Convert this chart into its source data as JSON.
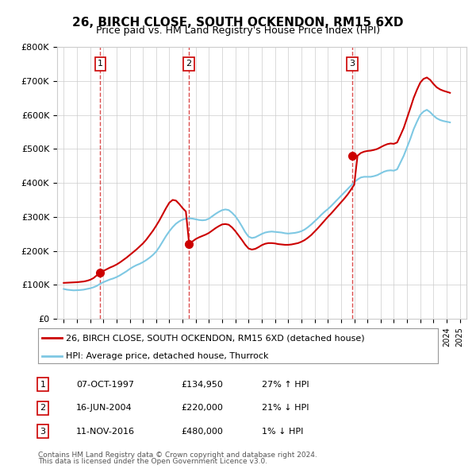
{
  "title": "26, BIRCH CLOSE, SOUTH OCKENDON, RM15 6XD",
  "subtitle": "Price paid vs. HM Land Registry's House Price Index (HPI)",
  "xlabel": "",
  "ylabel": "",
  "ylim": [
    0,
    800000
  ],
  "yticks": [
    0,
    100000,
    200000,
    300000,
    400000,
    500000,
    600000,
    700000,
    800000
  ],
  "ytick_labels": [
    "£0",
    "£100K",
    "£200K",
    "£300K",
    "£400K",
    "£500K",
    "£600K",
    "£700K",
    "£800K"
  ],
  "hpi_color": "#7ec8e3",
  "price_color": "#cc0000",
  "dot_color": "#cc0000",
  "dashed_color": "#cc0000",
  "background_color": "#ffffff",
  "grid_color": "#cccccc",
  "transactions": [
    {
      "num": 1,
      "date": "07-OCT-1997",
      "price": 134950,
      "hpi_note": "27% ↑ HPI",
      "x_year": 1997.77
    },
    {
      "num": 2,
      "date": "16-JUN-2004",
      "price": 220000,
      "hpi_note": "21% ↓ HPI",
      "x_year": 2004.46
    },
    {
      "num": 3,
      "date": "11-NOV-2016",
      "price": 480000,
      "hpi_note": "1% ↓ HPI",
      "x_year": 2016.86
    }
  ],
  "legend_label_price": "26, BIRCH CLOSE, SOUTH OCKENDON, RM15 6XD (detached house)",
  "legend_label_hpi": "HPI: Average price, detached house, Thurrock",
  "footer1": "Contains HM Land Registry data © Crown copyright and database right 2024.",
  "footer2": "This data is licensed under the Open Government Licence v3.0.",
  "hpi_data_x": [
    1995.0,
    1995.25,
    1995.5,
    1995.75,
    1996.0,
    1996.25,
    1996.5,
    1996.75,
    1997.0,
    1997.25,
    1997.5,
    1997.75,
    1998.0,
    1998.25,
    1998.5,
    1998.75,
    1999.0,
    1999.25,
    1999.5,
    1999.75,
    2000.0,
    2000.25,
    2000.5,
    2000.75,
    2001.0,
    2001.25,
    2001.5,
    2001.75,
    2002.0,
    2002.25,
    2002.5,
    2002.75,
    2003.0,
    2003.25,
    2003.5,
    2003.75,
    2004.0,
    2004.25,
    2004.5,
    2004.75,
    2005.0,
    2005.25,
    2005.5,
    2005.75,
    2006.0,
    2006.25,
    2006.5,
    2006.75,
    2007.0,
    2007.25,
    2007.5,
    2007.75,
    2008.0,
    2008.25,
    2008.5,
    2008.75,
    2009.0,
    2009.25,
    2009.5,
    2009.75,
    2010.0,
    2010.25,
    2010.5,
    2010.75,
    2011.0,
    2011.25,
    2011.5,
    2011.75,
    2012.0,
    2012.25,
    2012.5,
    2012.75,
    2013.0,
    2013.25,
    2013.5,
    2013.75,
    2014.0,
    2014.25,
    2014.5,
    2014.75,
    2015.0,
    2015.25,
    2015.5,
    2015.75,
    2016.0,
    2016.25,
    2016.5,
    2016.75,
    2017.0,
    2017.25,
    2017.5,
    2017.75,
    2018.0,
    2018.25,
    2018.5,
    2018.75,
    2019.0,
    2019.25,
    2019.5,
    2019.75,
    2020.0,
    2020.25,
    2020.5,
    2020.75,
    2021.0,
    2021.25,
    2021.5,
    2021.75,
    2022.0,
    2022.25,
    2022.5,
    2022.75,
    2023.0,
    2023.25,
    2023.5,
    2023.75,
    2024.0,
    2024.25
  ],
  "hpi_data_y": [
    88000,
    86000,
    85000,
    84000,
    84500,
    85000,
    86000,
    88000,
    90000,
    93000,
    97000,
    103000,
    108000,
    112000,
    116000,
    119000,
    123000,
    128000,
    134000,
    140000,
    147000,
    153000,
    158000,
    162000,
    167000,
    173000,
    180000,
    188000,
    198000,
    212000,
    228000,
    244000,
    258000,
    270000,
    280000,
    287000,
    292000,
    295000,
    296000,
    295000,
    293000,
    291000,
    290000,
    291000,
    295000,
    302000,
    309000,
    315000,
    320000,
    322000,
    320000,
    312000,
    302000,
    288000,
    272000,
    255000,
    242000,
    238000,
    240000,
    245000,
    250000,
    254000,
    256000,
    257000,
    256000,
    255000,
    254000,
    252000,
    251000,
    252000,
    253000,
    255000,
    258000,
    263000,
    270000,
    278000,
    287000,
    296000,
    306000,
    315000,
    323000,
    332000,
    342000,
    352000,
    362000,
    372000,
    382000,
    392000,
    402000,
    410000,
    416000,
    418000,
    418000,
    418000,
    420000,
    423000,
    428000,
    433000,
    436000,
    437000,
    436000,
    440000,
    460000,
    480000,
    505000,
    530000,
    558000,
    580000,
    600000,
    610000,
    615000,
    608000,
    598000,
    590000,
    585000,
    582000,
    580000,
    578000
  ],
  "price_line_x": [
    1995.0,
    1995.25,
    1995.5,
    1995.75,
    1996.0,
    1996.25,
    1996.5,
    1996.75,
    1997.0,
    1997.25,
    1997.5,
    1997.75,
    1998.0,
    1998.25,
    1998.5,
    1998.75,
    1999.0,
    1999.25,
    1999.5,
    1999.75,
    2000.0,
    2000.25,
    2000.5,
    2000.75,
    2001.0,
    2001.25,
    2001.5,
    2001.75,
    2002.0,
    2002.25,
    2002.5,
    2002.75,
    2003.0,
    2003.25,
    2003.5,
    2003.75,
    2004.0,
    2004.25,
    2004.5,
    2004.75,
    2005.0,
    2005.25,
    2005.5,
    2005.75,
    2006.0,
    2006.25,
    2006.5,
    2006.75,
    2007.0,
    2007.25,
    2007.5,
    2007.75,
    2008.0,
    2008.25,
    2008.5,
    2008.75,
    2009.0,
    2009.25,
    2009.5,
    2009.75,
    2010.0,
    2010.25,
    2010.5,
    2010.75,
    2011.0,
    2011.25,
    2011.5,
    2011.75,
    2012.0,
    2012.25,
    2012.5,
    2012.75,
    2013.0,
    2013.25,
    2013.5,
    2013.75,
    2014.0,
    2014.25,
    2014.5,
    2014.75,
    2015.0,
    2015.25,
    2015.5,
    2015.75,
    2016.0,
    2016.25,
    2016.5,
    2016.75,
    2017.0,
    2017.25,
    2017.5,
    2017.75,
    2018.0,
    2018.25,
    2018.5,
    2018.75,
    2019.0,
    2019.25,
    2019.5,
    2019.75,
    2020.0,
    2020.25,
    2020.5,
    2020.75,
    2021.0,
    2021.25,
    2021.5,
    2021.75,
    2022.0,
    2022.25,
    2022.5,
    2022.75,
    2023.0,
    2023.25,
    2023.5,
    2023.75,
    2024.0,
    2024.25
  ],
  "price_line_y": [
    106000,
    106500,
    107000,
    107500,
    108000,
    109000,
    110000,
    112000,
    115000,
    120000,
    128000,
    134950,
    141000,
    146000,
    151000,
    155000,
    160000,
    166000,
    173000,
    180000,
    188000,
    196000,
    204000,
    213000,
    222000,
    233000,
    246000,
    259000,
    274000,
    290000,
    308000,
    326000,
    342000,
    350000,
    348000,
    338000,
    326000,
    316000,
    220000,
    228000,
    235000,
    240000,
    244000,
    248000,
    253000,
    260000,
    267000,
    273000,
    278000,
    279000,
    277000,
    269000,
    258000,
    245000,
    232000,
    218000,
    207000,
    204000,
    206000,
    211000,
    217000,
    221000,
    223000,
    223000,
    222000,
    220000,
    219000,
    218000,
    218000,
    219000,
    221000,
    223000,
    227000,
    232000,
    239000,
    247000,
    257000,
    267000,
    278000,
    289000,
    300000,
    310000,
    321000,
    332000,
    343000,
    354000,
    366000,
    380000,
    395000,
    480000,
    488000,
    492000,
    494000,
    495000,
    497000,
    500000,
    505000,
    510000,
    514000,
    516000,
    515000,
    519000,
    540000,
    562000,
    591000,
    620000,
    650000,
    674000,
    695000,
    706000,
    710000,
    703000,
    691000,
    681000,
    675000,
    671000,
    668000,
    665000
  ],
  "xlim": [
    1994.5,
    2025.5
  ],
  "xticks": [
    1995,
    1996,
    1997,
    1998,
    1999,
    2000,
    2001,
    2002,
    2003,
    2004,
    2005,
    2006,
    2007,
    2008,
    2009,
    2010,
    2011,
    2012,
    2013,
    2014,
    2015,
    2016,
    2017,
    2018,
    2019,
    2020,
    2021,
    2022,
    2023,
    2024,
    2025
  ]
}
